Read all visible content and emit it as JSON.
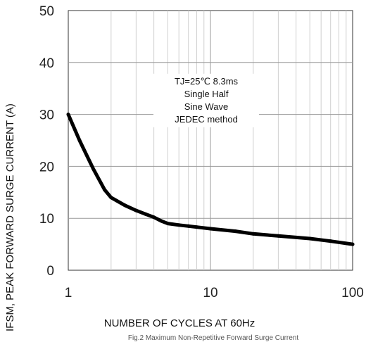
{
  "chart_data": {
    "type": "line",
    "title": "",
    "xlabel": "NUMBER OF CYCLES AT 60Hz",
    "ylabel": "IFSM, PEAK FORWARD SURGE CURRENT (A)",
    "caption": "Fig.2 Maximum Non-Repetitive Forward Surge Current",
    "x_scale": "log",
    "xlim": [
      1,
      100
    ],
    "ylim": [
      0,
      50
    ],
    "x_ticks": [
      1,
      10,
      100
    ],
    "y_ticks": [
      0,
      10,
      20,
      30,
      40,
      50
    ],
    "grid": true,
    "annotation": [
      "TJ=25℃ 8.3ms",
      "Single Half",
      "Sine Wave",
      "JEDEC method"
    ],
    "series": [
      {
        "color": "#000000",
        "x": [
          1,
          1.2,
          1.5,
          1.8,
          2,
          2.5,
          3,
          3.5,
          4,
          4.5,
          5,
          6,
          7,
          8,
          10,
          15,
          20,
          30,
          50,
          70,
          100
        ],
        "y": [
          30,
          25,
          19.5,
          15.5,
          14,
          12.5,
          11.5,
          10.8,
          10.2,
          9.5,
          9,
          8.7,
          8.5,
          8.3,
          8,
          7.5,
          7,
          6.6,
          6.1,
          5.6,
          5
        ]
      }
    ]
  }
}
